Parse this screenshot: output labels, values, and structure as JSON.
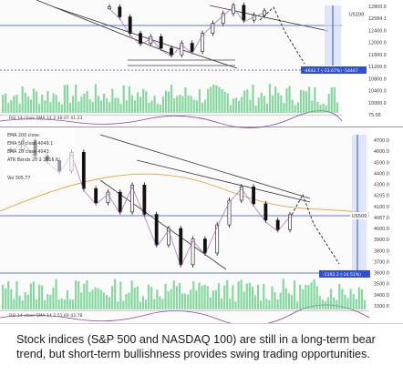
{
  "caption": "Stock indices (S&P 500 and NASDAQ 100) are still in a long-term bear trend, but short-term bullishness provides swing trading opportunities.",
  "colors": {
    "candle": "#111111",
    "sma_short": "#9b59b6",
    "sma_long": "#e6a23c",
    "volume": "#6fd08c",
    "rsi": "#8e44ad",
    "hline": "#2f4fd6",
    "price_tag": "#2f4fd6",
    "target_arrow": "#2f4fd6"
  },
  "chart_data": [
    {
      "type": "line",
      "title": "",
      "price_labels": [
        "12800.0",
        "12584.1",
        "12400.0",
        "12000.0",
        "11600.0",
        "11200.0",
        "10800.0",
        "10400.0",
        "10000.0",
        "75.00"
      ],
      "price_tag": "US100",
      "target_box": "-4643.7 (-33.67%) -54467",
      "rsi_label": "RSI 14 close SMA 14 2  48.07  41.23",
      "series": [
        {
          "values": [
            12700,
            12400,
            11900,
            11600,
            11800,
            11450,
            11250,
            11600,
            11350,
            11900,
            12200,
            12500,
            12750,
            12300,
            12450,
            12584
          ]
        }
      ]
    },
    {
      "type": "line",
      "title": "",
      "price_labels": [
        "4700.0",
        "4600.0",
        "4500.0",
        "4400.0",
        "4300.0",
        "4205.0",
        "4100.0",
        "4067.0",
        "4000.0",
        "3900.0",
        "3800.0",
        "3700.0",
        "3600.0",
        "3500.0",
        "3400.0",
        "3300.0"
      ],
      "price_tag": "US500",
      "target_box": "-1193.3 (-24.51%)",
      "legend": [
        "EMA 200 close",
        "EMA 50 close 4049.1",
        "EMA 20 close 4043",
        "ATR Bands 20 2 3816.6",
        "Vol 305.77"
      ],
      "rsi_label": "RSI 14 close SMA 14 2  51.69  42.78",
      "series": [
        {
          "values": [
            4620,
            4700,
            4570,
            4530,
            4440,
            4600,
            4290,
            4170,
            4260,
            4090,
            4320,
            4070,
            3810,
            3950,
            3640,
            3860,
            3740,
            3980,
            4190,
            4305,
            4160,
            4020,
            3940,
            4067
          ]
        }
      ]
    }
  ]
}
